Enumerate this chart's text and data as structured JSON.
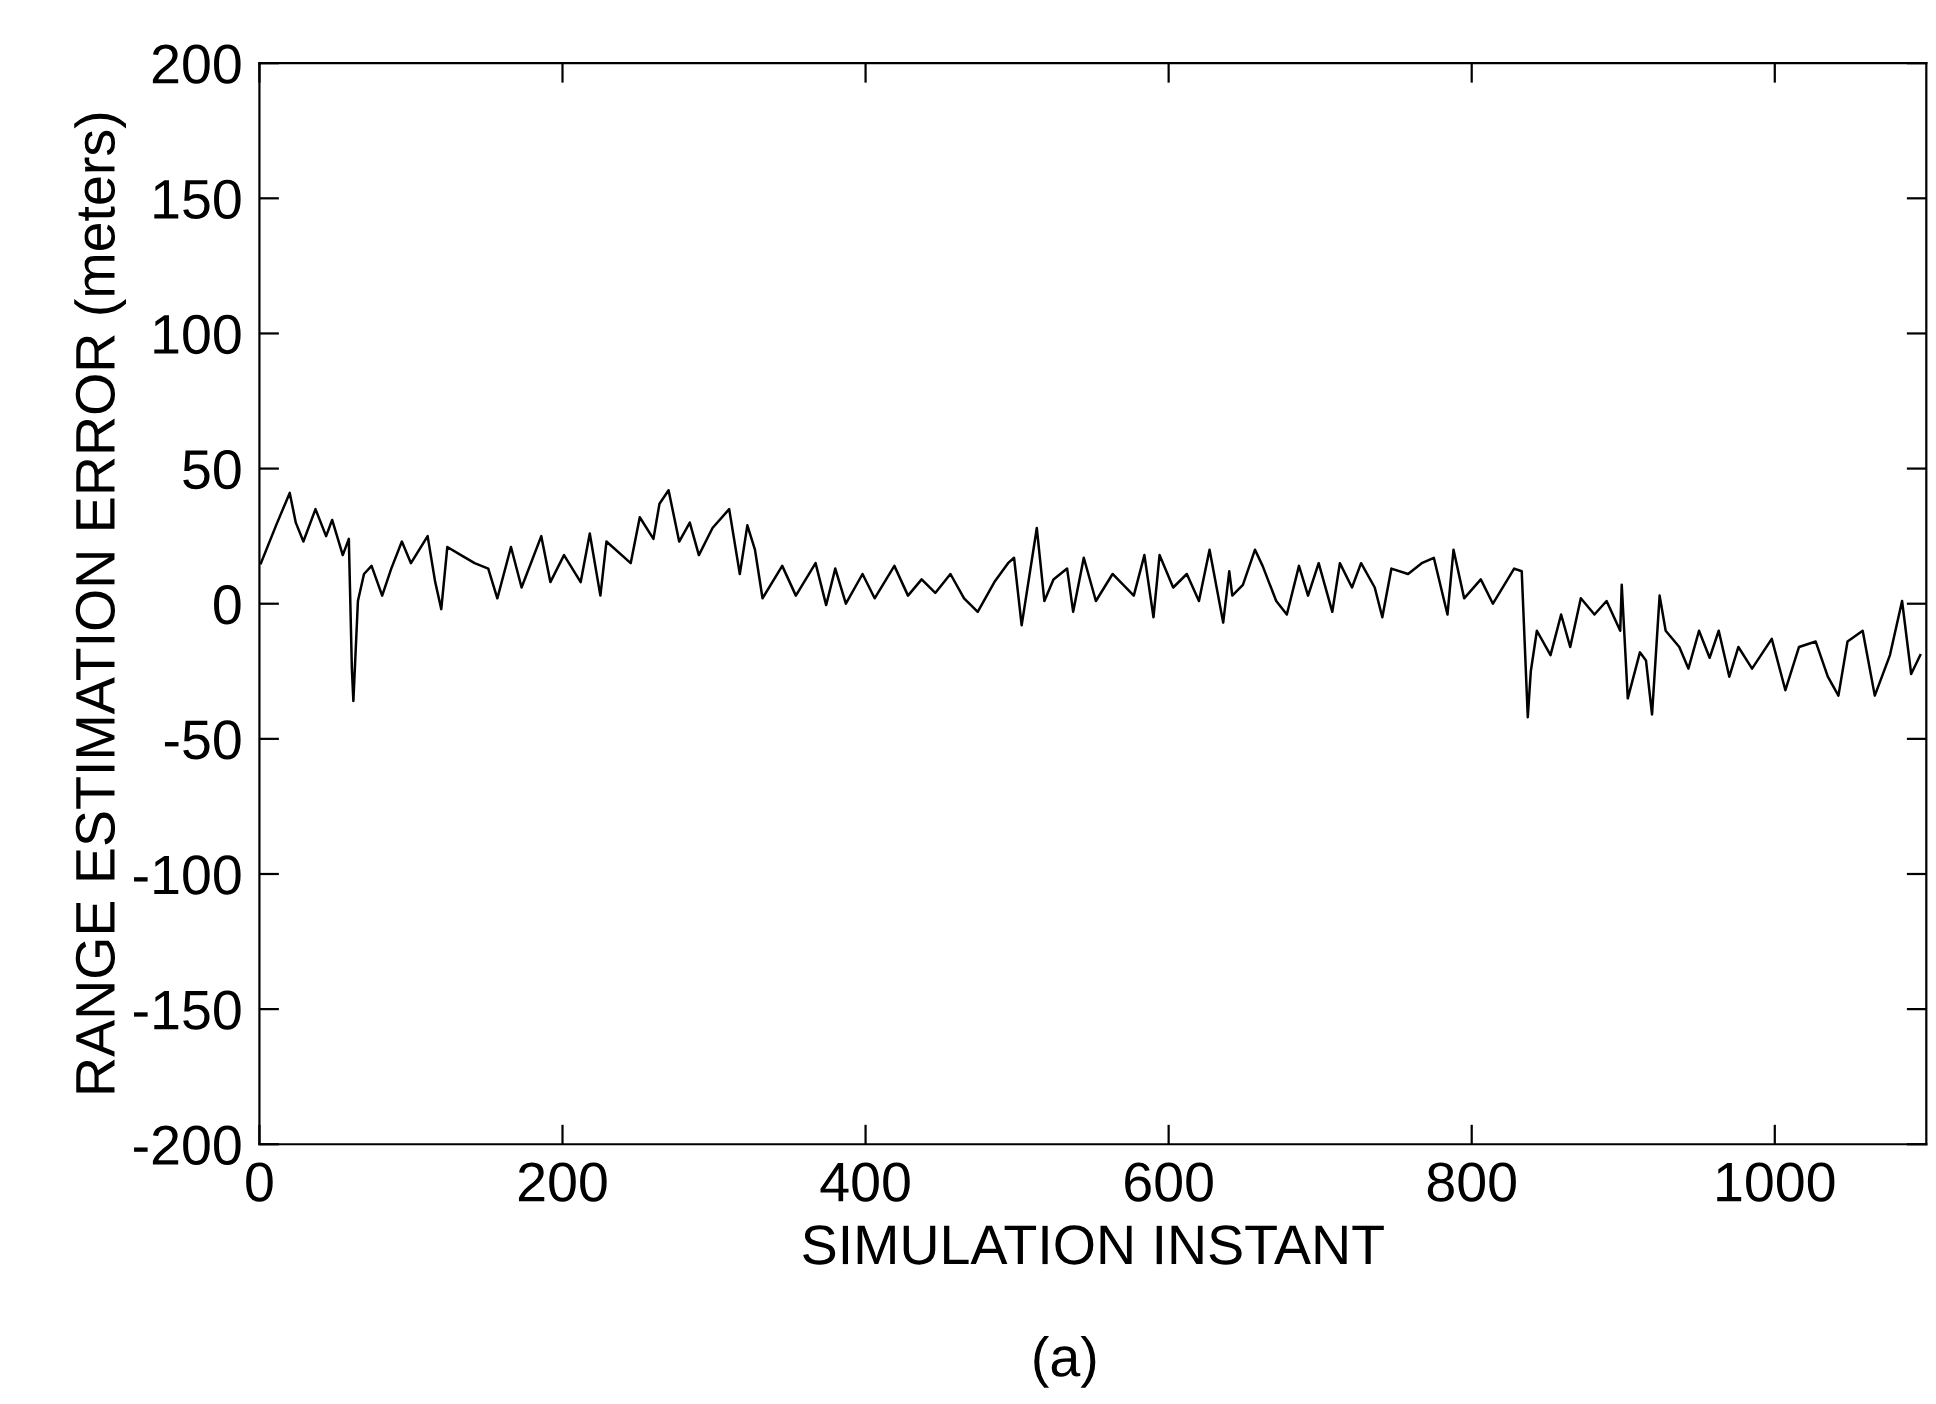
{
  "chart_data": {
    "type": "line",
    "xlabel": "SIMULATION INSTANT",
    "ylabel": "RANGE ESTIMATION ERROR (meters)",
    "annotations": [
      "(a)"
    ],
    "xlim": [
      0,
      1100
    ],
    "ylim": [
      -200,
      200
    ],
    "xticks": [
      0,
      200,
      400,
      600,
      800,
      1000
    ],
    "yticks": [
      -200,
      -150,
      -100,
      -50,
      0,
      50,
      100,
      150,
      200
    ],
    "grid": false,
    "legend": false,
    "marker": "none",
    "line_style": "solid",
    "series": [
      {
        "color": "#000000",
        "x": [
          1,
          11,
          20,
          24,
          29,
          37,
          44,
          48,
          55,
          59,
          61,
          62,
          65,
          69,
          74,
          81,
          87,
          94,
          100,
          111,
          116,
          120,
          124,
          133,
          142,
          151,
          157,
          166,
          173,
          186,
          192,
          201,
          212,
          218,
          225,
          229,
          245,
          251,
          260,
          264,
          270,
          277,
          284,
          290,
          299,
          310,
          317,
          322,
          327,
          332,
          345,
          354,
          367,
          374,
          380,
          387,
          398,
          406,
          419,
          428,
          437,
          446,
          456,
          465,
          474,
          485,
          494,
          498,
          503,
          513,
          518,
          524,
          533,
          537,
          544,
          552,
          563,
          577,
          584,
          590,
          594,
          603,
          612,
          620,
          627,
          636,
          640,
          642,
          649,
          657,
          662,
          671,
          678,
          686,
          692,
          699,
          708,
          713,
          721,
          727,
          736,
          741,
          747,
          758,
          767,
          775,
          784,
          788,
          795,
          806,
          814,
          828,
          833,
          837,
          839,
          843,
          852,
          859,
          865,
          872,
          881,
          889,
          898,
          899,
          903,
          911,
          915,
          919,
          924,
          928,
          937,
          943,
          950,
          957,
          963,
          970,
          976,
          985,
          998,
          1007,
          1016,
          1027,
          1035,
          1042,
          1048,
          1058,
          1066,
          1076,
          1084,
          1090,
          1096
        ],
        "values": [
          15,
          29,
          41,
          30,
          23,
          35,
          25,
          31,
          18,
          24,
          -24,
          -36,
          1,
          11,
          14,
          3,
          13,
          23,
          15,
          25,
          8,
          -2,
          21,
          18,
          15,
          13,
          2,
          21,
          6,
          25,
          8,
          18,
          8,
          26,
          3,
          23,
          15,
          32,
          24,
          37,
          42,
          23,
          30,
          18,
          28,
          35,
          11,
          29,
          20,
          2,
          14,
          3,
          15,
          -0.5,
          13,
          0,
          11,
          2,
          14,
          3,
          9,
          4,
          11,
          2,
          -3,
          8,
          15,
          17,
          -8,
          28,
          1,
          9,
          13,
          -3,
          17,
          1,
          11,
          3,
          18,
          -5,
          18,
          6,
          11,
          1,
          20,
          -7,
          12,
          3,
          7,
          20,
          14,
          1,
          -4,
          14,
          3,
          15,
          -3,
          15,
          6,
          15,
          6,
          -5,
          13,
          11,
          15,
          17,
          -4,
          20,
          2,
          9,
          0,
          13,
          12,
          -42,
          -25,
          -10,
          -19,
          -4,
          -16,
          2,
          -4,
          1,
          -10,
          7,
          -35,
          -18,
          -21,
          -41,
          3,
          -10,
          -16,
          -24,
          -10,
          -20,
          -10,
          -27,
          -16,
          -24,
          -13,
          -32,
          -16,
          -14,
          -27,
          -34,
          -14,
          -10,
          -34,
          -19,
          1,
          -26,
          -19
        ]
      }
    ]
  }
}
